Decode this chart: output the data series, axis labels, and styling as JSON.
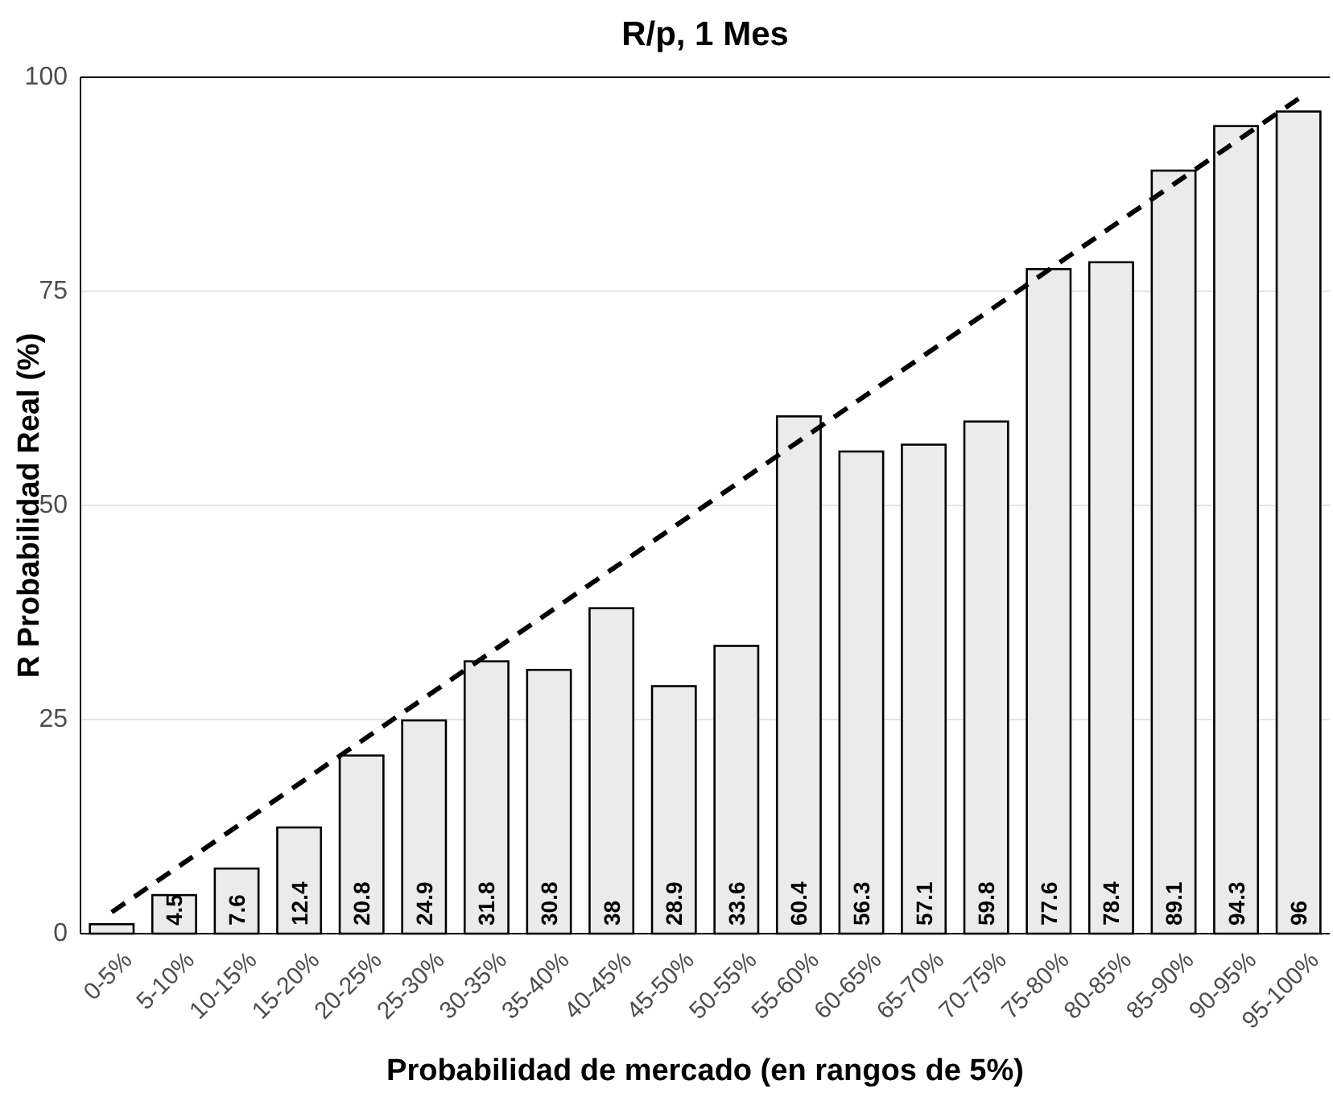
{
  "chart_data": {
    "type": "bar",
    "title": "R/p, 1 Mes",
    "xlabel": "Probabilidad de mercado (en rangos de 5%)",
    "ylabel": "R Probabilidad Real (%)",
    "categories": [
      "0-5%",
      "5-10%",
      "10-15%",
      "15-20%",
      "20-25%",
      "25-30%",
      "30-35%",
      "35-40%",
      "40-45%",
      "45-50%",
      "50-55%",
      "55-60%",
      "60-65%",
      "65-70%",
      "70-75%",
      "75-80%",
      "80-85%",
      "85-90%",
      "90-95%",
      "95-100%"
    ],
    "series": [
      {
        "color": "#ebebeb",
        "values": [
          1.1,
          4.5,
          7.6,
          12.4,
          20.8,
          24.9,
          31.8,
          30.8,
          38,
          28.9,
          33.6,
          60.4,
          56.3,
          57.1,
          59.8,
          77.6,
          78.4,
          89.1,
          94.3,
          96
        ],
        "value_labels": [
          null,
          "4.5",
          "7.6",
          "12.4",
          "20.8",
          "24.9",
          "31.8",
          "30.8",
          "38",
          "28.9",
          "33.6",
          "60.4",
          "56.3",
          "57.1",
          "59.8",
          "77.6",
          "78.4",
          "89.1",
          "94.3",
          "96"
        ]
      },
      {
        "type": "line",
        "color": "#000000",
        "line_style": "dashed",
        "values": [
          2.5,
          7.5,
          12.5,
          17.5,
          22.5,
          27.5,
          32.5,
          37.5,
          42.5,
          47.5,
          52.5,
          57.5,
          62.5,
          67.5,
          72.5,
          77.5,
          82.5,
          87.5,
          92.5,
          97.5
        ]
      }
    ],
    "ylim": [
      0,
      100
    ],
    "yticks": [
      0,
      25,
      50,
      75,
      100
    ],
    "grid": "y"
  }
}
